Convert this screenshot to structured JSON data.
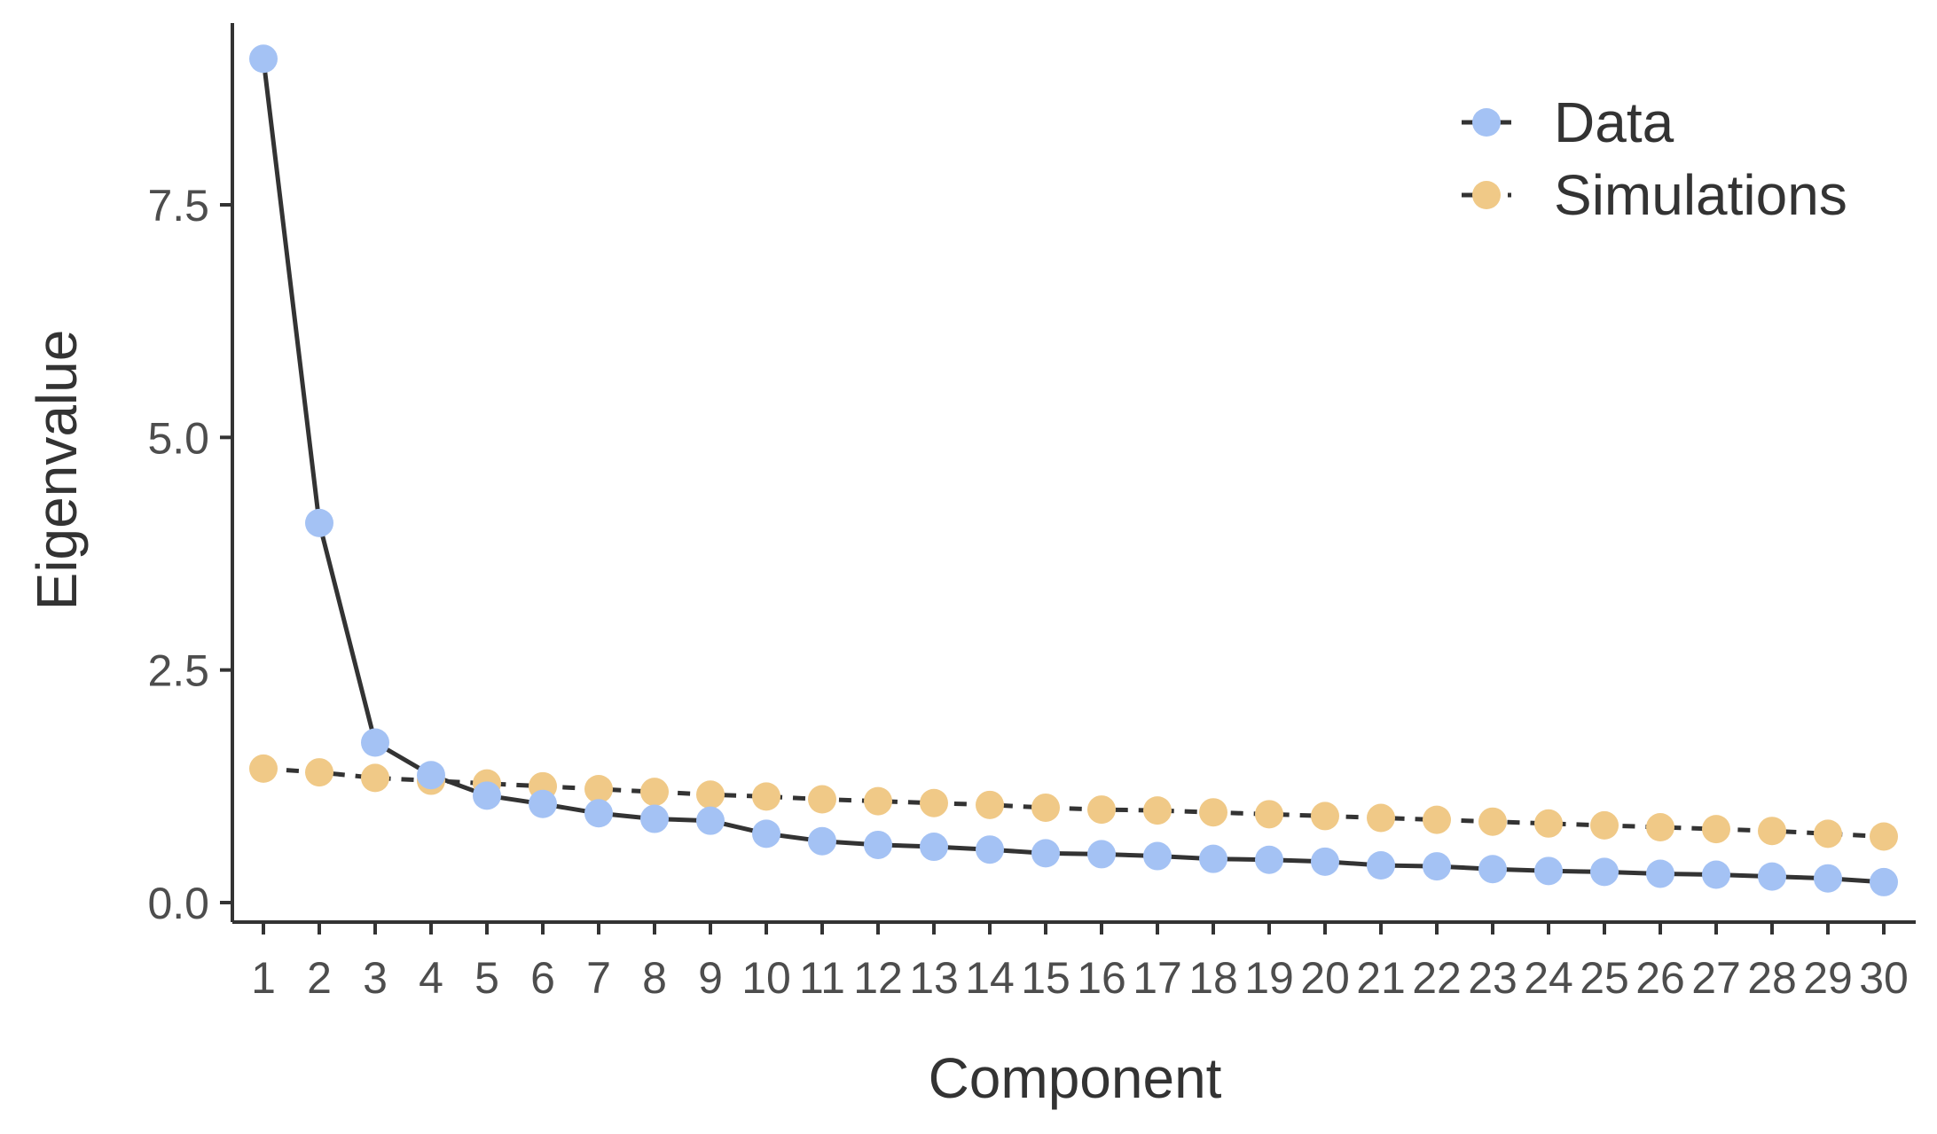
{
  "chart_data": {
    "type": "line",
    "title": "",
    "xlabel": "Component",
    "ylabel": "Eigenvalue",
    "x": [
      1,
      2,
      3,
      4,
      5,
      6,
      7,
      8,
      9,
      10,
      11,
      12,
      13,
      14,
      15,
      16,
      17,
      18,
      19,
      20,
      21,
      22,
      23,
      24,
      25,
      26,
      27,
      28,
      29,
      30
    ],
    "x_tick_labels": [
      "1",
      "2",
      "3",
      "4",
      "5",
      "6",
      "7",
      "8",
      "9",
      "10",
      "11",
      "12",
      "13",
      "14",
      "15",
      "16",
      "17",
      "18",
      "19",
      "20",
      "21",
      "22",
      "23",
      "24",
      "25",
      "26",
      "27",
      "28",
      "29",
      "30"
    ],
    "y_ticks": [
      0.0,
      2.5,
      5.0,
      7.5
    ],
    "y_tick_labels": [
      "0.0",
      "2.5",
      "5.0",
      "7.5"
    ],
    "ylim": [
      0,
      9.3
    ],
    "grid": false,
    "legend_position": "top-right",
    "series": [
      {
        "name": "Data",
        "color": "#a4c2f4",
        "line_color": "#333333",
        "line_style": "solid",
        "values": [
          9.07,
          4.08,
          1.72,
          1.37,
          1.15,
          1.06,
          0.96,
          0.9,
          0.88,
          0.74,
          0.66,
          0.62,
          0.6,
          0.57,
          0.53,
          0.52,
          0.5,
          0.47,
          0.46,
          0.44,
          0.4,
          0.39,
          0.36,
          0.34,
          0.33,
          0.31,
          0.3,
          0.28,
          0.26,
          0.22
        ]
      },
      {
        "name": "Simulations",
        "color": "#f0c987",
        "line_color": "#333333",
        "line_style": "dashed",
        "values": [
          1.44,
          1.4,
          1.34,
          1.31,
          1.28,
          1.25,
          1.22,
          1.19,
          1.16,
          1.14,
          1.11,
          1.09,
          1.07,
          1.05,
          1.02,
          1.0,
          0.99,
          0.97,
          0.95,
          0.93,
          0.91,
          0.89,
          0.87,
          0.85,
          0.83,
          0.81,
          0.79,
          0.77,
          0.74,
          0.71
        ]
      }
    ]
  }
}
